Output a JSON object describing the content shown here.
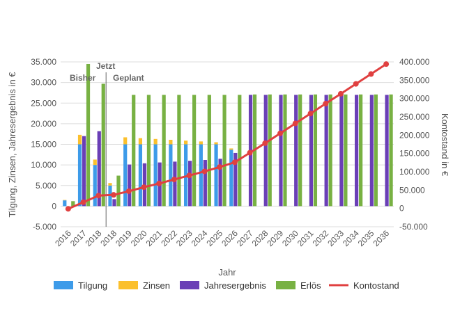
{
  "chart_data": {
    "type": "bar",
    "xlabel": "Jahr",
    "ylabel_left": "Tilgung, Zinsen, Jahresergebnis in €",
    "ylabel_right": "Kontostand in €",
    "ylim_left": [
      -5000,
      35000
    ],
    "ylim_right": [
      -50000,
      400000
    ],
    "yticks_left": [
      "-5.000",
      "0",
      "5.000",
      "10.000",
      "15.000",
      "20.000",
      "25.000",
      "30.000",
      "35.000"
    ],
    "yticks_right": [
      "-50.000",
      "0",
      "50.000",
      "100.000",
      "150.000",
      "200.000",
      "250.000",
      "300.000",
      "350.000",
      "400.000"
    ],
    "grid": true,
    "legend_position": "bottom",
    "categories": [
      "2016",
      "2017",
      "2018",
      "2018",
      "2019",
      "2020",
      "2021",
      "2022",
      "2023",
      "2024",
      "2025",
      "2026",
      "2027",
      "2028",
      "2029",
      "2030",
      "2031",
      "2032",
      "2033",
      "2034",
      "2035",
      "2036"
    ],
    "annotations": {
      "before": "Bisher",
      "now": "Jetzt",
      "after": "Geplant"
    },
    "marker_between": [
      "2018",
      "2018"
    ],
    "series": [
      {
        "name": "Tilgung",
        "type": "bar",
        "stack": "a",
        "color": "#3d9be9",
        "values": [
          1400,
          15000,
          10000,
          5000,
          15000,
          15000,
          15000,
          15000,
          15000,
          15000,
          15000,
          13700,
          0,
          0,
          0,
          0,
          0,
          0,
          0,
          0,
          0,
          0
        ]
      },
      {
        "name": "Zinsen",
        "type": "bar",
        "stack": "a",
        "color": "#fbc02d",
        "values": [
          100,
          2300,
          1300,
          600,
          1700,
          1500,
          1300,
          1100,
          900,
          700,
          500,
          300,
          0,
          0,
          0,
          0,
          0,
          0,
          0,
          0,
          0,
          0
        ]
      },
      {
        "name": "Jahresergebnis",
        "type": "bar",
        "color": "#6a3fb6",
        "values": [
          0,
          17000,
          18200,
          1700,
          10100,
          10400,
          10600,
          10800,
          11000,
          11200,
          11500,
          12900,
          27000,
          27000,
          27000,
          27000,
          27000,
          27000,
          27000,
          27000,
          27000,
          27000
        ]
      },
      {
        "name": "Erlös",
        "type": "bar",
        "color": "#78b143",
        "values": [
          1200,
          34500,
          29700,
          7400,
          27000,
          27000,
          27000,
          27000,
          27000,
          27000,
          27000,
          27000,
          27100,
          27100,
          27100,
          27100,
          27100,
          27100,
          27100,
          27100,
          27100,
          27100
        ]
      },
      {
        "name": "Kontostand",
        "type": "line",
        "axis": "right",
        "color": "#e04040",
        "values": [
          -1000,
          17000,
          35000,
          37000,
          47000,
          58000,
          68000,
          79000,
          90000,
          101000,
          113000,
          126000,
          152000,
          178000,
          205000,
          232000,
          259000,
          286000,
          313000,
          340000,
          367000,
          394000
        ]
      }
    ]
  }
}
